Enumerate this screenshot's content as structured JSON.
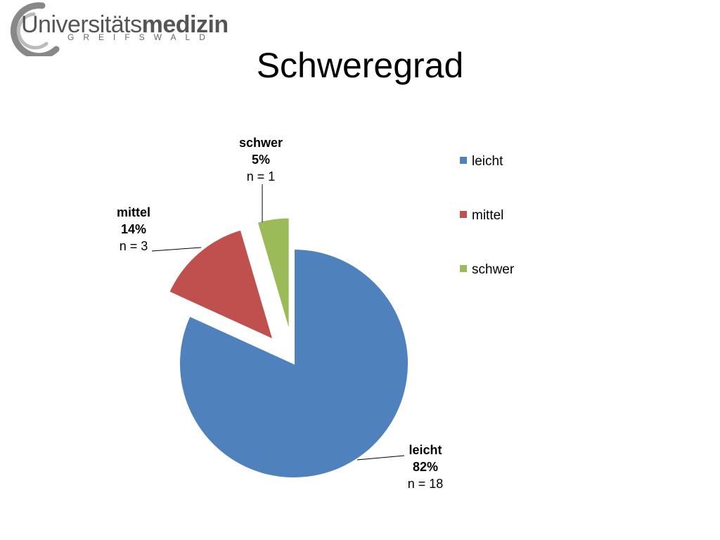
{
  "logo": {
    "name_regular": "Universitäts",
    "name_bold": "medizin",
    "subtitle": "GREIFSWALD"
  },
  "chart_data": {
    "type": "pie",
    "title": "Schweregrad",
    "categories": [
      "leicht",
      "mittel",
      "schwer"
    ],
    "values": [
      18,
      3,
      1
    ],
    "percent_labels": [
      "82%",
      "14%",
      "5%"
    ],
    "count_labels": [
      "n = 18",
      "n = 3",
      "n = 1"
    ],
    "colors": [
      "#4F81BD",
      "#C0504D",
      "#9BBB59"
    ],
    "exploded": [
      false,
      true,
      true
    ],
    "legend_position": "right",
    "legend_entries": [
      "leicht",
      "mittel",
      "schwer"
    ]
  }
}
